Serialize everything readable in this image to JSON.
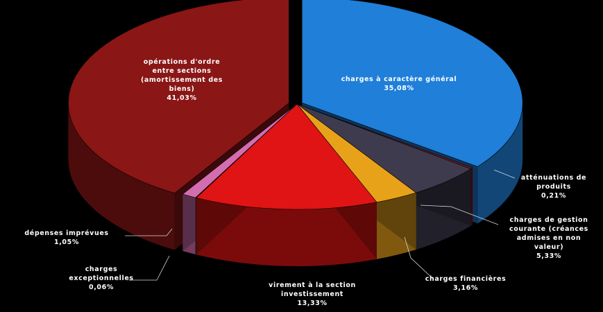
{
  "chart_data": {
    "type": "pie",
    "title": "",
    "slices": [
      {
        "label": [
          "charges à caractère général",
          "35,08%"
        ],
        "value": 35.08,
        "color": "#1f7fd9"
      },
      {
        "label": [
          "atténuations de",
          "produits",
          "0,21%"
        ],
        "value": 0.21,
        "color": "#7a1a22"
      },
      {
        "label": [
          "charges de gestion",
          "courante (créances",
          "admises en non",
          "valeur)",
          "5,33%"
        ],
        "value": 5.33,
        "color": "#3e3b4e"
      },
      {
        "label": [
          "charges financières",
          "3,16%"
        ],
        "value": 3.16,
        "color": "#e8a21a"
      },
      {
        "label": [
          "virement à la section",
          "investissement",
          "13,33%"
        ],
        "value": 13.33,
        "color": "#e01414"
      },
      {
        "label": [
          "charges",
          "exceptionnelles",
          "0,06%"
        ],
        "value": 0.06,
        "color": "#1a3a20"
      },
      {
        "label": [
          "dépenses imprévues",
          "1,05%"
        ],
        "value": 1.05,
        "color": "#d36db0"
      },
      {
        "label": [
          "opérations d'ordre",
          "entre sections",
          "(amortissement des",
          "biens)",
          "41,03%"
        ],
        "value": 41.03,
        "color": "#8a1616"
      }
    ]
  }
}
